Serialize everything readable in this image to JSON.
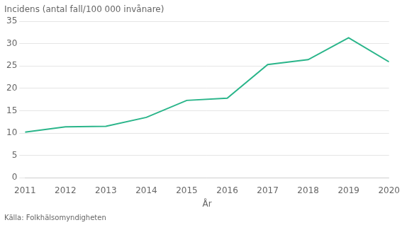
{
  "chart_data": {
    "type": "line",
    "x": [
      2011,
      2012,
      2013,
      2014,
      2015,
      2016,
      2017,
      2018,
      2019,
      2020
    ],
    "values": [
      10.2,
      11.4,
      11.5,
      13.5,
      17.3,
      17.8,
      25.3,
      26.4,
      31.3,
      25.9
    ],
    "color": "#2ab58a",
    "xlabel": "År",
    "ylabel": "Incidens (antal fall/100 000 invånare)",
    "annotations": [
      "Källa: Folkhälsomyndigheten"
    ],
    "xlim": [
      2011,
      2020
    ],
    "xticks": [
      2011,
      2012,
      2013,
      2014,
      2015,
      2016,
      2017,
      2018,
      2019,
      2020
    ],
    "ylim": [
      0,
      35
    ],
    "yticks": [
      0,
      5,
      10,
      15,
      20,
      25,
      30,
      35
    ],
    "grid": true
  }
}
